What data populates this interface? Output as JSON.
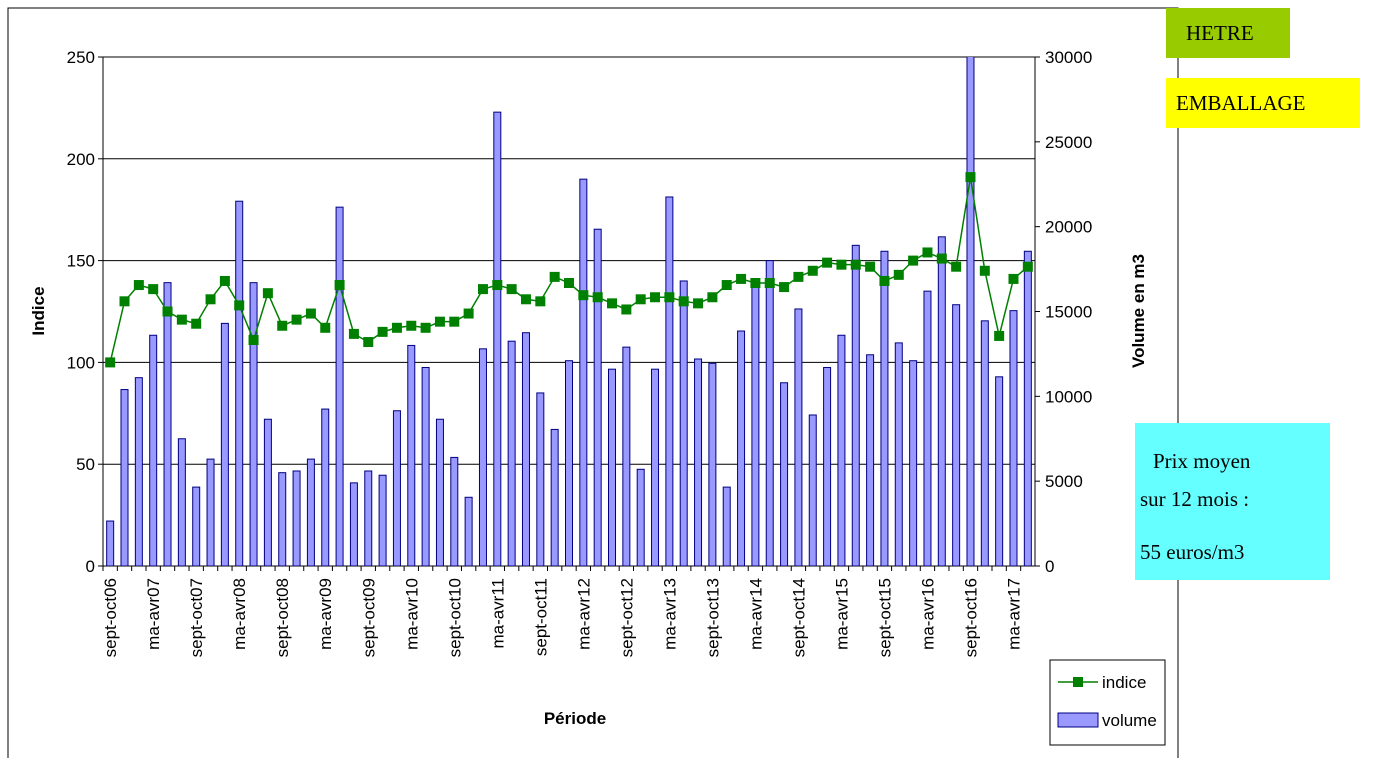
{
  "chart_data": {
    "type": "bar-line",
    "x_label": "Période",
    "y_label": "Indice",
    "y2_label": "Volume en m3",
    "categories": [
      "sept-oct06",
      null,
      null,
      "ma-avr07",
      null,
      null,
      "sept-oct07",
      null,
      null,
      "ma-avr08",
      null,
      null,
      "sept-oct08",
      null,
      null,
      "ma-avr09",
      null,
      null,
      "sept-oct09",
      null,
      null,
      "ma-avr10",
      null,
      null,
      "sept-oct10",
      null,
      null,
      "ma-avr11",
      null,
      null,
      "sept-oct11",
      null,
      null,
      "ma-avr12",
      null,
      null,
      "sept-oct12",
      null,
      null,
      "ma-avr13",
      null,
      null,
      "sept-oct13",
      null,
      null,
      "ma-avr14",
      null,
      null,
      "sept-oct14",
      null,
      null,
      "ma-avr15",
      null,
      null,
      "sept-oct15",
      null,
      null,
      "ma-avr16",
      null,
      null,
      "sept-oct16",
      null,
      null,
      "ma-avr17",
      null
    ],
    "series": [
      {
        "name": "indice",
        "type": "line",
        "color": "#008000",
        "values": [
          100,
          130,
          138,
          136,
          125,
          121,
          119,
          131,
          140,
          128,
          111,
          134,
          118,
          121,
          124,
          117,
          138,
          114,
          110,
          115,
          117,
          118,
          117,
          120,
          120,
          124,
          136,
          138,
          136,
          131,
          130,
          142,
          139,
          133,
          132,
          129,
          126,
          131,
          132,
          132,
          130,
          129,
          132,
          138,
          141,
          139,
          139,
          137,
          142,
          145,
          149,
          148,
          148,
          147,
          140,
          143,
          150,
          154,
          151,
          147,
          191,
          145,
          113,
          141,
          147
        ]
      },
      {
        "name": "volume",
        "type": "bar",
        "axis": "y2",
        "color": "#9999ff",
        "values": [
          2650,
          10400,
          11100,
          13600,
          16700,
          7500,
          4650,
          6300,
          14300,
          21500,
          16700,
          8650,
          5500,
          5600,
          6300,
          9250,
          21150,
          4900,
          5600,
          5350,
          9150,
          13000,
          11700,
          8650,
          6400,
          4050,
          12800,
          26750,
          13250,
          13750,
          10200,
          8050,
          12100,
          22800,
          19850,
          11600,
          12900,
          5700,
          11600,
          21750,
          16800,
          12200,
          11950,
          4650,
          13850,
          16450,
          18000,
          10800,
          15150,
          8900,
          11700,
          13600,
          18900,
          12450,
          18550,
          13150,
          12100,
          16200,
          19400,
          15400,
          31000,
          14450,
          11150,
          15050,
          18550
        ]
      }
    ],
    "ylim": [
      0,
      250
    ],
    "yticks": [
      0,
      50,
      100,
      150,
      200,
      250
    ],
    "y2lim": [
      0,
      30000
    ],
    "y2ticks": [
      0,
      5000,
      10000,
      15000,
      20000,
      25000,
      30000
    ],
    "grid": true,
    "legend": "bottom-right",
    "annotations": {
      "species": "HETRE",
      "usage": "EMBALLAGE",
      "price": [
        "Prix moyen",
        "sur 12 mois :",
        "55 euros/m3"
      ]
    }
  }
}
